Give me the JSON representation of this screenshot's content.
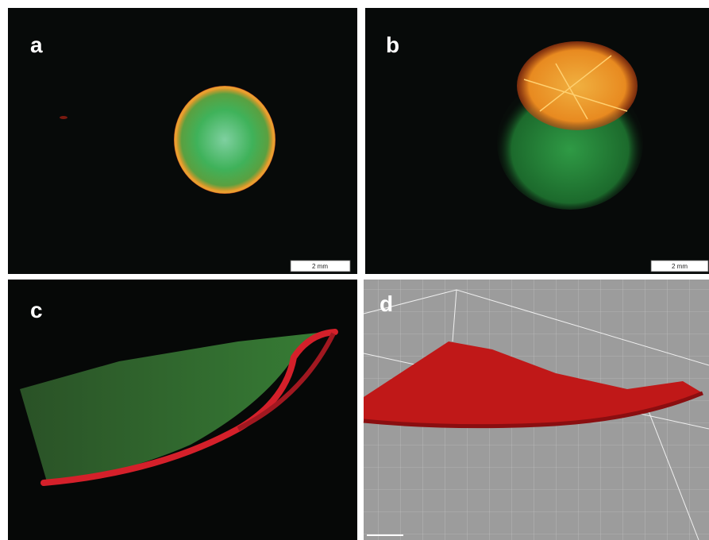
{
  "panels": [
    {
      "label": "a",
      "scale_bar": "2 mm"
    },
    {
      "label": "b",
      "scale_bar": "2 mm"
    },
    {
      "label": "c"
    },
    {
      "label": "d"
    }
  ]
}
